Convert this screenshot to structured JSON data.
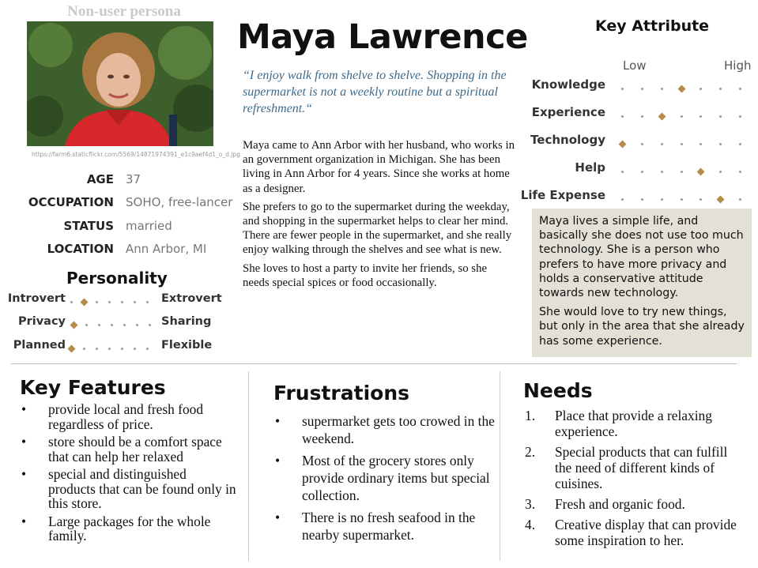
{
  "persona_label": "Non-user persona",
  "photo_credit": "https://farm6.staticflickr.com/5569/14871974391_e1c9aef4d1_o_d.jpg",
  "profile": [
    {
      "label": "AGE",
      "value": "37"
    },
    {
      "label": "OCCUPATION",
      "value": "SOHO, free-lancer"
    },
    {
      "label": "STATUS",
      "value": "married"
    },
    {
      "label": "LOCATION",
      "value": "Ann Arbor, MI"
    }
  ],
  "personality": {
    "title": "Personality",
    "traits": [
      {
        "left": "Introvert",
        "right": "Extrovert",
        "level": 0.2
      },
      {
        "left": "Privacy",
        "right": "Sharing",
        "level": 0.0
      },
      {
        "left": "Planned",
        "right": "Flexible",
        "level": 0.0
      }
    ]
  },
  "name": "Maya Lawrence",
  "quote": "“I enjoy walk from shelve to shelve. Shopping in the supermarket is not a weekly routine but a spiritual refreshment.“",
  "bio": [
    "Maya came to Ann Arbor with her husband, who works in an government organization in Michigan. She has been living in Ann Arbor for 4 years. Since she works at home as a designer.",
    "She prefers to go to the supermarket during the weekday, and shopping in the supermarket helps to clear her mind. There are fewer people in the supermarket, and she really enjoy walking through the shelves and see what is new.",
    "She loves to host a party to invite her friends, so she needs special spices or food occasionally."
  ],
  "key_attribute": {
    "title": "Key Attribute",
    "low_label": "Low",
    "high_label": "High",
    "attributes": [
      {
        "name": "Knowledge",
        "level": 0.5
      },
      {
        "name": "Experience",
        "level": 0.33
      },
      {
        "name": "Technology",
        "level": 0.08
      },
      {
        "name": "Help",
        "level": 0.67
      },
      {
        "name": "Life Expense",
        "level": 0.75
      }
    ]
  },
  "summary": [
    "Maya lives a simple life, and basically she does not use too much technology. She is a person who prefers to have more privacy and holds a conservative attitude towards new technology.",
    "She would love to try new things, but only in the area that she already has some experience."
  ],
  "key_features": {
    "title": "Key Features",
    "bullet": "•",
    "items": [
      "provide local and fresh food regardless of price.",
      "store should be a comfort space that can help her relaxed",
      "special and distinguished products that can be found only in this store.",
      "Large packages for the whole family."
    ]
  },
  "frustrations": {
    "title": "Frustrations",
    "bullet": "•",
    "items": [
      "supermarket gets too crowed in the weekend.",
      "Most of the grocery stores only provide ordinary items but special collection.",
      "There is no fresh seafood in the nearby supermarket."
    ]
  },
  "needs": {
    "title": "Needs",
    "items": [
      {
        "num": "1.",
        "text": "Place that provide a relaxing experience."
      },
      {
        "num": "2.",
        "text": "Special products that can fulfill the need of different kinds of cuisines."
      },
      {
        "num": "3.",
        "text": "Fresh and organic food."
      },
      {
        "num": "4.",
        "text": "Creative display that can provide some inspiration to her."
      }
    ]
  },
  "colors": {
    "marker": "#b58a4a",
    "quote": "#3f6a8a",
    "summary_bg": "#e3e0d6"
  }
}
